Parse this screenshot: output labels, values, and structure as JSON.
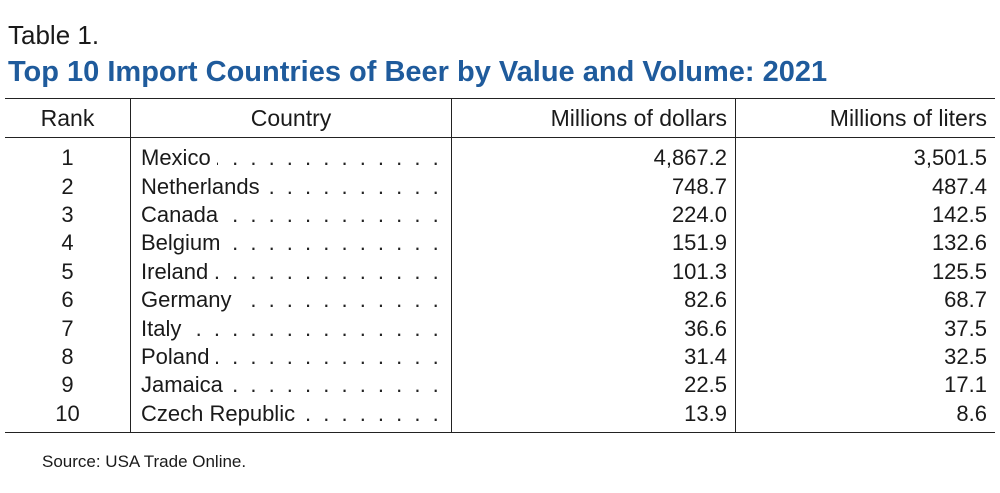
{
  "label": "Table 1.",
  "title": "Top 10 Import Countries of Beer by Value and Volume: 2021",
  "headers": {
    "rank": "Rank",
    "country": "Country",
    "dollars": "Millions of dollars",
    "liters": "Millions of liters"
  },
  "rows": [
    {
      "rank": "1",
      "country": "Mexico",
      "dollars": "4,867.2",
      "liters": "3,501.5"
    },
    {
      "rank": "2",
      "country": "Netherlands",
      "dollars": "748.7",
      "liters": "487.4"
    },
    {
      "rank": "3",
      "country": "Canada",
      "dollars": "224.0",
      "liters": "142.5"
    },
    {
      "rank": "4",
      "country": "Belgium",
      "dollars": "151.9",
      "liters": "132.6"
    },
    {
      "rank": "5",
      "country": "Ireland",
      "dollars": "101.3",
      "liters": "125.5"
    },
    {
      "rank": "6",
      "country": "Germany",
      "dollars": "82.6",
      "liters": "68.7"
    },
    {
      "rank": "7",
      "country": "Italy",
      "dollars": "36.6",
      "liters": "37.5"
    },
    {
      "rank": "8",
      "country": "Poland",
      "dollars": "31.4",
      "liters": "32.5"
    },
    {
      "rank": "9",
      "country": "Jamaica",
      "dollars": "22.5",
      "liters": "17.1"
    },
    {
      "rank": "10",
      "country": "Czech Republic",
      "dollars": "13.9",
      "liters": "8.6"
    }
  ],
  "source": "Source: USA Trade Online.",
  "colors": {
    "title": "#1f5b9c",
    "text": "#1a1a1a",
    "rule": "#222222"
  }
}
